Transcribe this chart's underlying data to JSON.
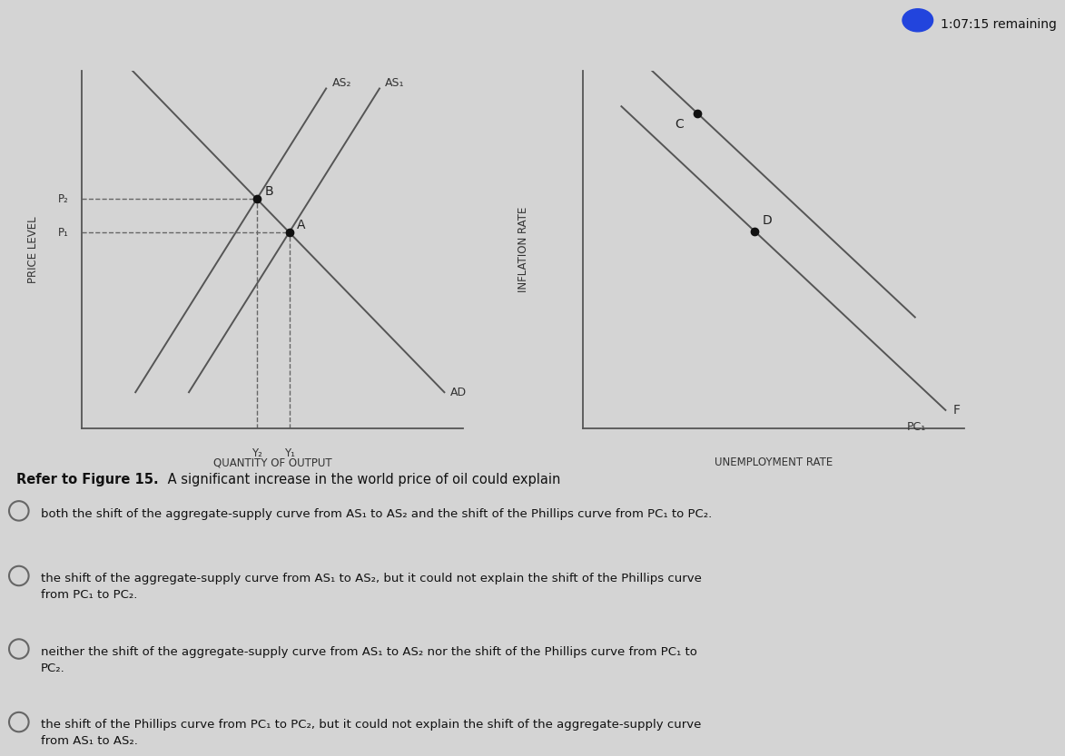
{
  "bg_color": "#d4d4d4",
  "lc": "#555555",
  "dc": "#111111",
  "left_chart": {
    "xlabel": "QUANTITY OF OUTPUT",
    "ylabel": "PRICE LEVEL",
    "as1_label": "AS₁",
    "as2_label": "AS₂",
    "ad_label": "AD",
    "p1_label": "P₁",
    "p2_label": "P₂",
    "y1_label": "Y₂",
    "y2_label": "Y₁",
    "point_a": "A",
    "point_b": "B"
  },
  "right_chart": {
    "xlabel": "UNEMPLOYMENT RATE",
    "ylabel": "INFLATION RATE",
    "pc1_label": "PC₁",
    "f_label": "F",
    "point_c": "C",
    "point_d": "D"
  },
  "question_bold": "Refer to Figure 15.",
  "question_rest": " A significant increase in the world price of oil could explain",
  "options": [
    "both the shift of the aggregate-supply curve from AS₁ to AS₂ and the shift of the Phillips curve from PC₁ to PC₂.",
    "the shift of the aggregate-supply curve from AS₁ to AS₂, but it could not explain the shift of the Phillips curve\nfrom PC₁ to PC₂.",
    "neither the shift of the aggregate-supply curve from AS₁ to AS₂ nor the shift of the Phillips curve from PC₁ to\nPC₂.",
    "the shift of the Phillips curve from PC₁ to PC₂, but it could not explain the shift of the aggregate-supply curve\nfrom AS₁ to AS₂."
  ],
  "timer_text": "1:07:15 remaining"
}
